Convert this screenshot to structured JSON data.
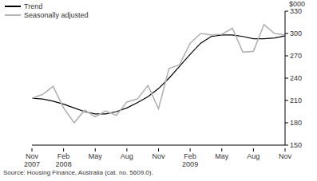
{
  "chart_data": {
    "type": "line",
    "y_label": "$000",
    "source": "Source: Housing Finance, Australia (cat. no. 5609.0).",
    "categories": [
      "Nov 2007",
      null,
      null,
      "Feb 2008",
      null,
      null,
      "May",
      null,
      null,
      "Aug",
      null,
      null,
      "Nov",
      null,
      null,
      "Feb 2009",
      null,
      null,
      "May",
      null,
      null,
      "Aug",
      null,
      null,
      "Nov"
    ],
    "series": [
      {
        "name": "Trend",
        "color": "#000000",
        "values": [
          213,
          212,
          209,
          205,
          200,
          195,
          192,
          192,
          195,
          200,
          207,
          215,
          226,
          240,
          256,
          272,
          287,
          296,
          298,
          298,
          296,
          293,
          293,
          294,
          297
        ]
      },
      {
        "name": "Seasonally adjusted",
        "color": "#b3b3b3",
        "values": [
          213,
          218,
          229,
          200,
          180,
          197,
          188,
          196,
          190,
          208,
          212,
          230,
          199,
          253,
          258,
          287,
          300,
          298,
          299,
          307,
          275,
          276,
          312,
          300,
          298
        ]
      }
    ],
    "ylim": [
      150,
      330
    ],
    "yticks": [
      150,
      180,
      210,
      240,
      270,
      300,
      330
    ],
    "legend": "upper left",
    "grid": false
  }
}
